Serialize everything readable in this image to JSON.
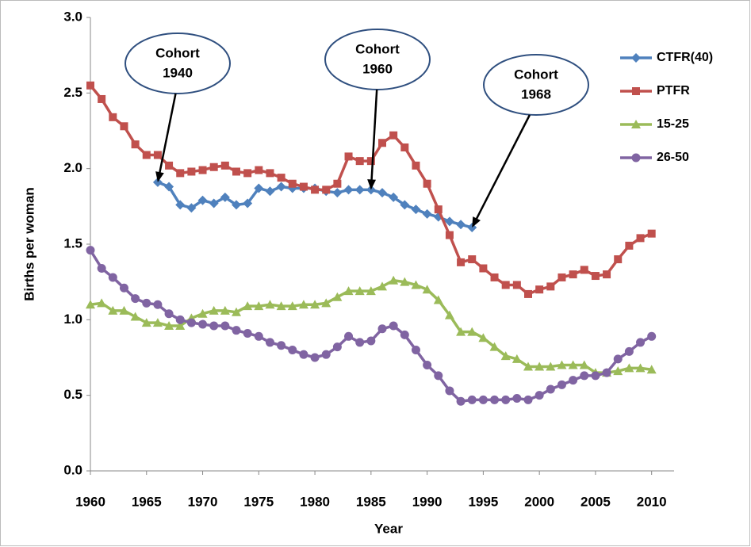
{
  "chart_data": {
    "type": "line",
    "x_label": "Year",
    "y_label": "Births per woman",
    "x": [
      1960,
      1961,
      1962,
      1963,
      1964,
      1965,
      1966,
      1967,
      1968,
      1969,
      1970,
      1971,
      1972,
      1973,
      1974,
      1975,
      1976,
      1977,
      1978,
      1979,
      1980,
      1981,
      1982,
      1983,
      1984,
      1985,
      1986,
      1987,
      1988,
      1989,
      1990,
      1991,
      1992,
      1993,
      1994,
      1995,
      1996,
      1997,
      1998,
      1999,
      2000,
      2001,
      2002,
      2003,
      2004,
      2005,
      2006,
      2007,
      2008,
      2009,
      2010
    ],
    "xlim": [
      1960,
      2012
    ],
    "xticks": [
      1960,
      1965,
      1970,
      1975,
      1980,
      1985,
      1990,
      1995,
      2000,
      2005,
      2010
    ],
    "ylim": [
      0,
      3
    ],
    "yticks": [
      {
        "value": 0,
        "label": "0.0"
      },
      {
        "value": 0.5,
        "label": "0.5"
      },
      {
        "value": 1,
        "label": "1.0"
      },
      {
        "value": 1.5,
        "label": "1.5"
      },
      {
        "value": 2,
        "label": "2.0"
      },
      {
        "value": 2.5,
        "label": "2.5"
      },
      {
        "value": 3,
        "label": "3.0"
      }
    ],
    "grid": false,
    "legend": "right",
    "series": [
      {
        "name": "CTFR(40)",
        "color": "#4f81bd",
        "marker": "diamond",
        "values": [
          null,
          null,
          null,
          null,
          null,
          null,
          1.91,
          1.88,
          1.76,
          1.74,
          1.79,
          1.77,
          1.81,
          1.76,
          1.77,
          1.87,
          1.85,
          1.88,
          1.87,
          1.87,
          1.87,
          1.85,
          1.84,
          1.86,
          1.86,
          1.86,
          1.84,
          1.81,
          1.76,
          1.73,
          1.7,
          1.68,
          1.65,
          1.63,
          1.61,
          null,
          null,
          null,
          null,
          null,
          null,
          null,
          null,
          null,
          null,
          null,
          null,
          null,
          null,
          null,
          null
        ]
      },
      {
        "name": "PTFR",
        "color": "#c0504d",
        "marker": "square",
        "values": [
          2.55,
          2.46,
          2.34,
          2.28,
          2.16,
          2.09,
          2.09,
          2.02,
          1.97,
          1.98,
          1.99,
          2.01,
          2.02,
          1.98,
          1.97,
          1.99,
          1.97,
          1.94,
          1.9,
          1.88,
          1.86,
          1.86,
          1.9,
          2.08,
          2.05,
          2.05,
          2.17,
          2.22,
          2.14,
          2.02,
          1.9,
          1.73,
          1.56,
          1.38,
          1.4,
          1.34,
          1.28,
          1.23,
          1.23,
          1.17,
          1.2,
          1.22,
          1.28,
          1.3,
          1.33,
          1.29,
          1.3,
          1.4,
          1.49,
          1.54,
          1.57
        ]
      },
      {
        "name": "15-25",
        "color": "#9bbb59",
        "marker": "triangle",
        "values": [
          1.1,
          1.11,
          1.06,
          1.06,
          1.02,
          0.98,
          0.98,
          0.96,
          0.96,
          1.01,
          1.04,
          1.06,
          1.06,
          1.05,
          1.09,
          1.09,
          1.1,
          1.09,
          1.09,
          1.1,
          1.1,
          1.11,
          1.15,
          1.19,
          1.19,
          1.19,
          1.22,
          1.26,
          1.25,
          1.23,
          1.2,
          1.13,
          1.03,
          0.92,
          0.92,
          0.88,
          0.82,
          0.76,
          0.74,
          0.69,
          0.69,
          0.69,
          0.7,
          0.7,
          0.7,
          0.65,
          0.65,
          0.66,
          0.68,
          0.68,
          0.67
        ]
      },
      {
        "name": "26-50",
        "color": "#8064a2",
        "marker": "circle",
        "values": [
          1.46,
          1.34,
          1.28,
          1.21,
          1.14,
          1.11,
          1.1,
          1.04,
          1.0,
          0.98,
          0.97,
          0.96,
          0.96,
          0.93,
          0.91,
          0.89,
          0.85,
          0.83,
          0.8,
          0.77,
          0.75,
          0.77,
          0.82,
          0.89,
          0.85,
          0.86,
          0.94,
          0.96,
          0.9,
          0.8,
          0.7,
          0.63,
          0.53,
          0.46,
          0.47,
          0.47,
          0.47,
          0.47,
          0.48,
          0.47,
          0.5,
          0.54,
          0.57,
          0.6,
          0.63,
          0.63,
          0.65,
          0.74,
          0.79,
          0.85,
          0.89
        ]
      }
    ],
    "annotations": [
      {
        "lines": [
          "Cohort",
          "1940"
        ],
        "x": 1966
      },
      {
        "lines": [
          "Cohort",
          "1960"
        ],
        "x": 1985
      },
      {
        "lines": [
          "Cohort",
          "1968"
        ],
        "x": 1994
      }
    ]
  }
}
